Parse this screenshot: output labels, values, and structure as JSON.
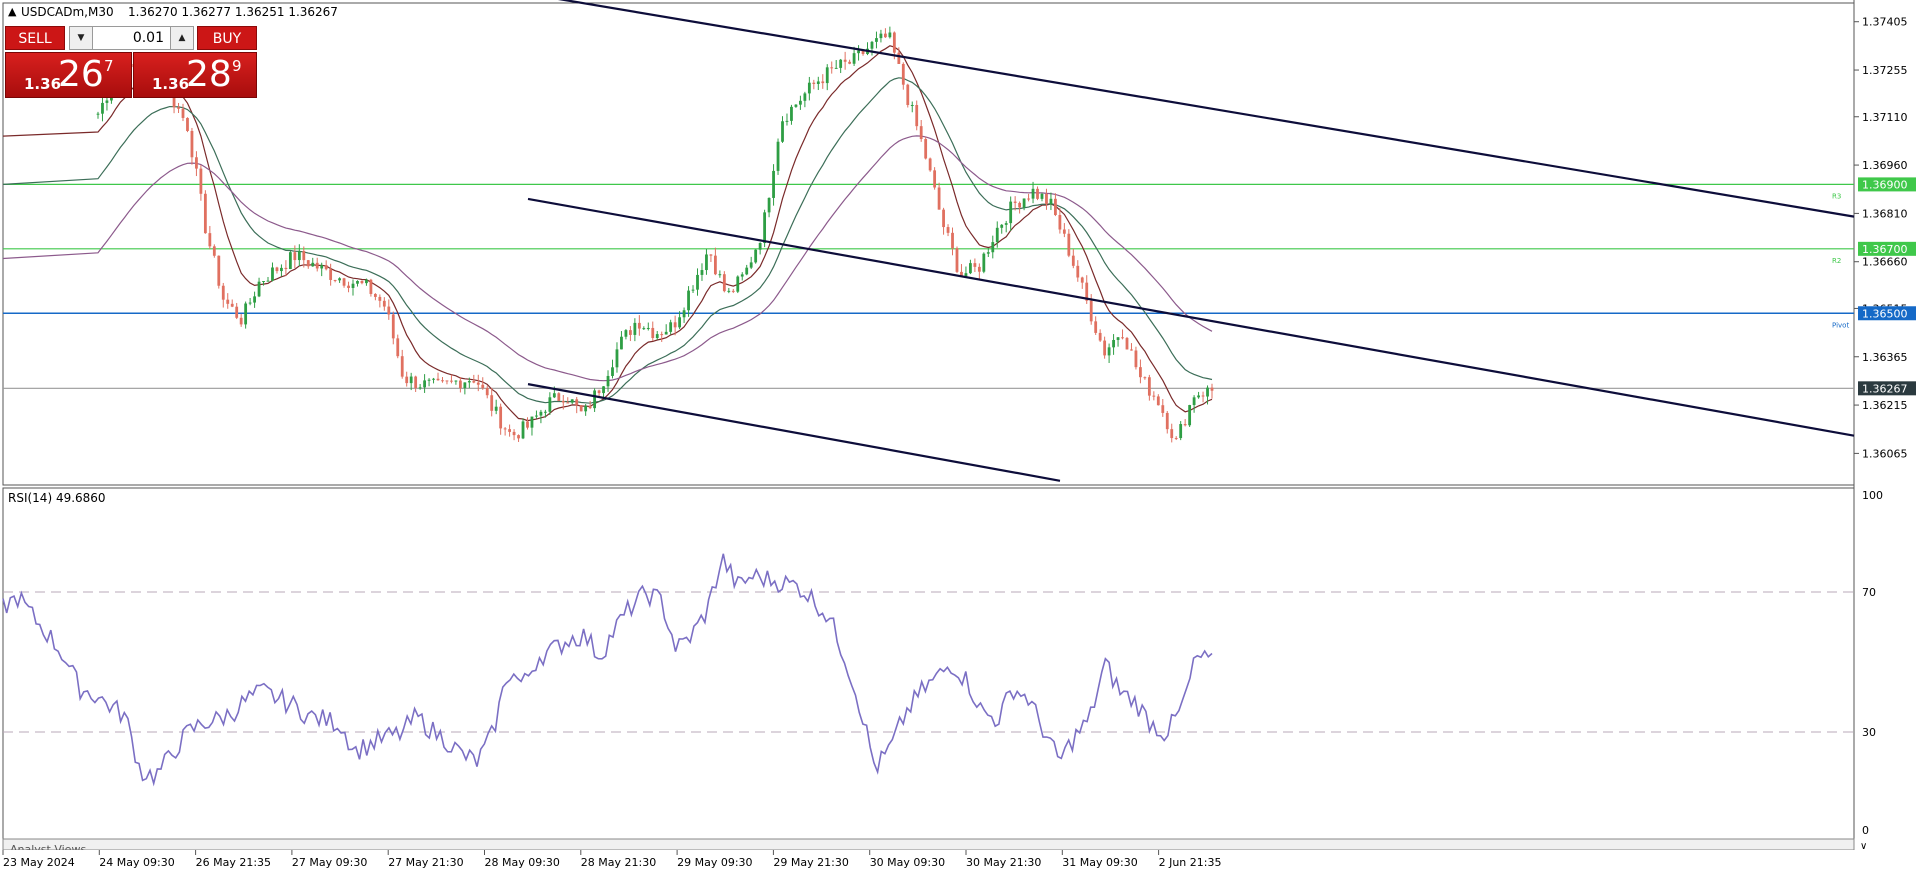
{
  "header": {
    "symbol_info": "USDCADm,M30",
    "ohlc": "1.36270 1.36277 1.36251 1.36267"
  },
  "trade_panel": {
    "sell_label": "SELL",
    "buy_label": "BUY",
    "lot_size": "0.01",
    "sell_price_prefix": "1.36",
    "sell_price_big": "26",
    "sell_price_sup": "7",
    "buy_price_prefix": "1.36",
    "buy_price_big": "28",
    "buy_price_sup": "9"
  },
  "price_axis": {
    "ticks": [
      "1.37405",
      "1.37255",
      "1.37110",
      "1.36960",
      "1.36810",
      "1.36660",
      "1.36515",
      "1.36365",
      "1.36215",
      "1.36065"
    ],
    "tick_values": [
      1.37405,
      1.37255,
      1.3711,
      1.3696,
      1.3681,
      1.3666,
      1.36515,
      1.36365,
      1.36215,
      1.36065
    ],
    "range": [
      1.3597,
      1.3746
    ]
  },
  "levels": {
    "r3": {
      "value": 1.369,
      "label": "1.36900",
      "tag": "R3",
      "color": "#3fc84a"
    },
    "r2": {
      "value": 1.367,
      "label": "1.36700",
      "tag": "R2",
      "color": "#3fc84a"
    },
    "pivot": {
      "value": 1.365,
      "label": "1.36500",
      "tag": "Pivot",
      "color": "#1569c7"
    },
    "current": {
      "value": 1.36267,
      "label": "1.36267",
      "color": "#2b3a3f"
    }
  },
  "rsi": {
    "label": "RSI(14) 49.6860",
    "levels": [
      "100",
      "70",
      "30",
      "0"
    ],
    "line_color": "#7b6fc4"
  },
  "time_axis": {
    "labels": [
      "23 May 2024",
      "24 May 09:30",
      "26 May 21:35",
      "27 May 09:30",
      "27 May 21:30",
      "28 May 09:30",
      "28 May 21:30",
      "29 May 09:30",
      "29 May 21:30",
      "30 May 09:30",
      "30 May 21:30",
      "31 May 09:30",
      "2 Jun 21:35"
    ]
  },
  "footer": {
    "tab_label": "Analyst Views"
  },
  "colors": {
    "bull": "#2e9e44",
    "bear": "#e07060",
    "ma_fast": "#7a2a2a",
    "ma_mid": "#3c6e58",
    "ma_slow": "#8c5a8c",
    "channel": "#0d0d3a",
    "button_red": "#cc1616"
  },
  "chart_data": {
    "type": "candlestick",
    "title": "USDCADm,M30",
    "ylim": [
      1.3597,
      1.3746
    ],
    "candles_anchor_closes": [
      1.3712,
      1.3724,
      1.3726,
      1.3724,
      1.3718,
      1.3708,
      1.3676,
      1.3654,
      1.3648,
      1.366,
      1.3664,
      1.3668,
      1.3665,
      1.3662,
      1.366,
      1.3658,
      1.3652,
      1.363,
      1.3628,
      1.3627,
      1.3629,
      1.363,
      1.362,
      1.3612,
      1.3615,
      1.3622,
      1.3625,
      1.3618,
      1.3628,
      1.364,
      1.3648,
      1.3644,
      1.3646,
      1.3658,
      1.367,
      1.3655,
      1.3662,
      1.3676,
      1.371,
      1.3716,
      1.3722,
      1.3726,
      1.3728,
      1.3733,
      1.3736,
      1.3718,
      1.37,
      1.3678,
      1.3662,
      1.3664,
      1.3676,
      1.3684,
      1.3688,
      1.3684,
      1.367,
      1.3654,
      1.3638,
      1.3645,
      1.363,
      1.3623,
      1.361,
      1.3625,
      1.3626
    ],
    "channel_lines": [
      {
        "name": "upper",
        "points": [
          [
            0,
            1.3748
          ],
          [
            1,
            1.368
          ]
        ]
      },
      {
        "name": "middle",
        "points": [
          [
            0,
            1.36855
          ],
          [
            1,
            1.3612
          ]
        ]
      },
      {
        "name": "lower",
        "points": [
          [
            0,
            1.3628
          ],
          [
            1,
            1.3598
          ]
        ]
      }
    ],
    "rsi_series_anchors": [
      66,
      69,
      63,
      58,
      52,
      43,
      41,
      38,
      35,
      19,
      18,
      24,
      30,
      33,
      34,
      36,
      40,
      42,
      40,
      38,
      35,
      34,
      33,
      25,
      27,
      29,
      30,
      35,
      31,
      28,
      24,
      22,
      30,
      48,
      44,
      52,
      54,
      57,
      58,
      52,
      60,
      66,
      70,
      68,
      54,
      58,
      65,
      80,
      72,
      75,
      74,
      73,
      72,
      68,
      63,
      52,
      38,
      20,
      26,
      36,
      42,
      46,
      50,
      45,
      36,
      34,
      43,
      40,
      31,
      22,
      29,
      34,
      50,
      42,
      39,
      33,
      30,
      37,
      52,
      50
    ]
  }
}
